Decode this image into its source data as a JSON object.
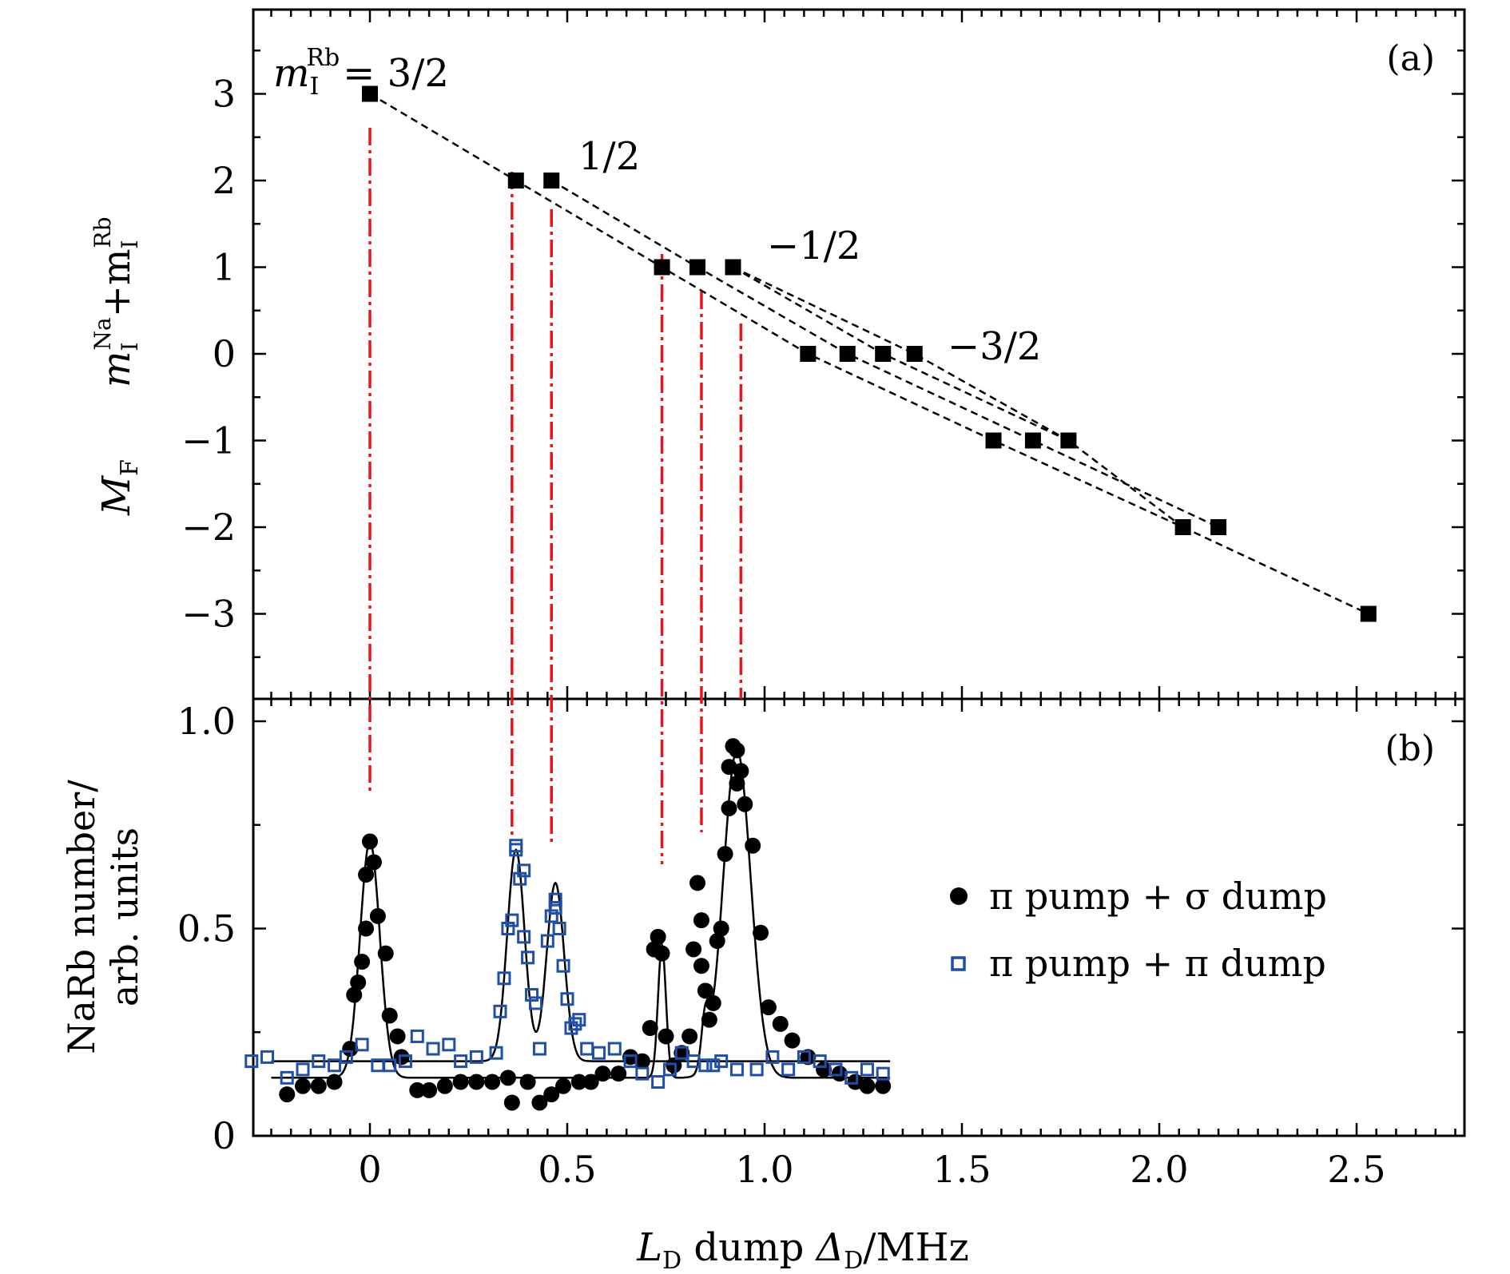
{
  "panel_a": {
    "tag": "(a)",
    "ylabel_parts": [
      "M",
      "F",
      "m",
      "I",
      "Na",
      "+m",
      "I",
      "Rb"
    ],
    "ytick_labels": [
      "3",
      "2",
      "1",
      "0",
      "−1",
      "−2",
      "−3"
    ],
    "group_labels": [
      "m",
      "I",
      "Rb",
      "= 3/2",
      "1/2",
      "−1/2",
      "−3/2"
    ]
  },
  "panel_b": {
    "tag": "(b)",
    "ylabel_line1": "NaRb number/",
    "ylabel_line2": "arb. units",
    "ytick_labels": [
      "0",
      "0.5",
      "1.0"
    ]
  },
  "xlabel_parts": [
    "L",
    "D",
    " dump ",
    "Δ",
    "D",
    "/MHz"
  ],
  "xtick_labels": [
    "0",
    "0.5",
    "1.0",
    "1.5",
    "2.0",
    "2.5"
  ],
  "legend": [
    "π pump + σ dump",
    "π pump + π dump"
  ],
  "colors": {
    "black": "#000000",
    "red": "#e8141c",
    "blue": "#1f4fa8"
  },
  "chart_data": [
    {
      "type": "scatter",
      "title": "(a)",
      "xlabel": "L_D dump Δ_D/MHz",
      "ylabel": "M_F   m_I^Na + m_I^Rb",
      "xlim": [
        -0.3,
        2.8
      ],
      "ylim": [
        -4,
        4
      ],
      "yticks": [
        3,
        2,
        1,
        0,
        -1,
        -2,
        -3
      ],
      "series": [
        {
          "name": "M_F levels",
          "points": [
            [
              0.0,
              3
            ],
            [
              0.37,
              2
            ],
            [
              0.46,
              2
            ],
            [
              0.74,
              1
            ],
            [
              0.83,
              1
            ],
            [
              0.92,
              1
            ],
            [
              1.11,
              0
            ],
            [
              1.21,
              0
            ],
            [
              1.3,
              0
            ],
            [
              1.38,
              0
            ],
            [
              1.58,
              -1
            ],
            [
              1.68,
              -1
            ],
            [
              1.77,
              -1
            ],
            [
              2.06,
              -2
            ],
            [
              2.15,
              -2
            ],
            [
              2.53,
              -3
            ]
          ]
        }
      ],
      "dashed_lines": [
        [
          [
            0.0,
            3
          ],
          [
            0.37,
            2
          ],
          [
            0.74,
            1
          ],
          [
            1.11,
            0
          ],
          [
            1.58,
            -1
          ],
          [
            2.06,
            -2
          ],
          [
            2.53,
            -3
          ]
        ],
        [
          [
            0.46,
            2
          ],
          [
            0.83,
            1
          ],
          [
            1.21,
            0
          ],
          [
            1.68,
            -1
          ],
          [
            2.15,
            -2
          ]
        ],
        [
          [
            0.92,
            1
          ],
          [
            1.3,
            0
          ],
          [
            1.77,
            -1
          ],
          [
            2.06,
            -2
          ]
        ],
        [
          [
            0.92,
            1
          ],
          [
            1.38,
            0
          ],
          [
            1.77,
            -1
          ]
        ]
      ],
      "annotations": [
        {
          "text": "m_I^Rb = 3/2"
        },
        {
          "text": "1/2"
        },
        {
          "text": "−1/2"
        },
        {
          "text": "−3/2"
        }
      ],
      "red_markers_x": [
        0.0,
        0.36,
        0.46,
        0.74,
        0.84,
        0.94
      ]
    },
    {
      "type": "scatter",
      "title": "(b)",
      "xlabel": "L_D dump Δ_D/MHz",
      "ylabel": "NaRb number/ arb. units",
      "xlim": [
        -0.3,
        2.8
      ],
      "ylim": [
        0,
        1.1
      ],
      "xticks": [
        0,
        0.5,
        1.0,
        1.5,
        2.0,
        2.5
      ],
      "yticks": [
        0,
        0.5,
        1.0
      ],
      "legend_position": "right",
      "series": [
        {
          "name": "π pump + σ dump",
          "marker": "filled-circle",
          "color": "#000000",
          "points": [
            [
              -0.21,
              0.1
            ],
            [
              -0.17,
              0.12
            ],
            [
              -0.13,
              0.12
            ],
            [
              -0.09,
              0.13
            ],
            [
              -0.05,
              0.21
            ],
            [
              -0.04,
              0.34
            ],
            [
              -0.03,
              0.37
            ],
            [
              -0.02,
              0.42
            ],
            [
              -0.01,
              0.5
            ],
            [
              -0.01,
              0.63
            ],
            [
              0.0,
              0.71
            ],
            [
              0.01,
              0.66
            ],
            [
              0.02,
              0.53
            ],
            [
              0.04,
              0.44
            ],
            [
              0.05,
              0.29
            ],
            [
              0.07,
              0.24
            ],
            [
              0.08,
              0.19
            ],
            [
              0.12,
              0.11
            ],
            [
              0.15,
              0.11
            ],
            [
              0.19,
              0.12
            ],
            [
              0.23,
              0.13
            ],
            [
              0.27,
              0.13
            ],
            [
              0.31,
              0.13
            ],
            [
              0.35,
              0.14
            ],
            [
              0.36,
              0.08
            ],
            [
              0.4,
              0.13
            ],
            [
              0.43,
              0.08
            ],
            [
              0.46,
              0.1
            ],
            [
              0.49,
              0.12
            ],
            [
              0.53,
              0.13
            ],
            [
              0.56,
              0.13
            ],
            [
              0.59,
              0.15
            ],
            [
              0.63,
              0.15
            ],
            [
              0.66,
              0.19
            ],
            [
              0.69,
              0.18
            ],
            [
              0.71,
              0.26
            ],
            [
              0.72,
              0.45
            ],
            [
              0.73,
              0.48
            ],
            [
              0.74,
              0.44
            ],
            [
              0.75,
              0.24
            ],
            [
              0.77,
              0.17
            ],
            [
              0.79,
              0.2
            ],
            [
              0.81,
              0.24
            ],
            [
              0.82,
              0.45
            ],
            [
              0.83,
              0.61
            ],
            [
              0.84,
              0.52
            ],
            [
              0.84,
              0.41
            ],
            [
              0.85,
              0.35
            ],
            [
              0.86,
              0.28
            ],
            [
              0.87,
              0.32
            ],
            [
              0.88,
              0.47
            ],
            [
              0.89,
              0.5
            ],
            [
              0.9,
              0.68
            ],
            [
              0.91,
              0.79
            ],
            [
              0.91,
              0.89
            ],
            [
              0.92,
              0.94
            ],
            [
              0.93,
              0.85
            ],
            [
              0.93,
              0.93
            ],
            [
              0.94,
              0.88
            ],
            [
              0.95,
              0.8
            ],
            [
              0.97,
              0.7
            ],
            [
              0.99,
              0.49
            ],
            [
              1.01,
              0.31
            ],
            [
              1.04,
              0.27
            ],
            [
              1.07,
              0.23
            ],
            [
              1.11,
              0.19
            ],
            [
              1.15,
              0.16
            ],
            [
              1.19,
              0.15
            ],
            [
              1.23,
              0.13
            ],
            [
              1.26,
              0.12
            ],
            [
              1.3,
              0.12
            ]
          ]
        },
        {
          "name": "π pump + π dump",
          "marker": "open-square",
          "color": "#1f4fa8",
          "points": [
            [
              -0.3,
              0.18
            ],
            [
              -0.26,
              0.19
            ],
            [
              -0.21,
              0.14
            ],
            [
              -0.17,
              0.16
            ],
            [
              -0.13,
              0.18
            ],
            [
              -0.09,
              0.17
            ],
            [
              -0.06,
              0.19
            ],
            [
              -0.02,
              0.22
            ],
            [
              0.02,
              0.17
            ],
            [
              0.05,
              0.17
            ],
            [
              0.09,
              0.18
            ],
            [
              0.12,
              0.24
            ],
            [
              0.16,
              0.21
            ],
            [
              0.2,
              0.22
            ],
            [
              0.23,
              0.18
            ],
            [
              0.27,
              0.19
            ],
            [
              0.32,
              0.2
            ],
            [
              0.33,
              0.3
            ],
            [
              0.34,
              0.38
            ],
            [
              0.35,
              0.5
            ],
            [
              0.36,
              0.52
            ],
            [
              0.37,
              0.69
            ],
            [
              0.37,
              0.7
            ],
            [
              0.38,
              0.62
            ],
            [
              0.39,
              0.64
            ],
            [
              0.39,
              0.48
            ],
            [
              0.4,
              0.43
            ],
            [
              0.41,
              0.34
            ],
            [
              0.42,
              0.32
            ],
            [
              0.43,
              0.21
            ],
            [
              0.45,
              0.47
            ],
            [
              0.46,
              0.53
            ],
            [
              0.47,
              0.57
            ],
            [
              0.47,
              0.55
            ],
            [
              0.48,
              0.5
            ],
            [
              0.49,
              0.41
            ],
            [
              0.5,
              0.33
            ],
            [
              0.51,
              0.26
            ],
            [
              0.52,
              0.27
            ],
            [
              0.53,
              0.28
            ],
            [
              0.55,
              0.21
            ],
            [
              0.58,
              0.2
            ],
            [
              0.62,
              0.21
            ],
            [
              0.66,
              0.18
            ],
            [
              0.69,
              0.15
            ],
            [
              0.73,
              0.13
            ],
            [
              0.76,
              0.16
            ],
            [
              0.79,
              0.2
            ],
            [
              0.82,
              0.18
            ],
            [
              0.85,
              0.17
            ],
            [
              0.87,
              0.17
            ],
            [
              0.89,
              0.18
            ],
            [
              0.93,
              0.16
            ],
            [
              0.98,
              0.16
            ],
            [
              1.02,
              0.19
            ],
            [
              1.06,
              0.16
            ],
            [
              1.1,
              0.19
            ],
            [
              1.14,
              0.18
            ],
            [
              1.18,
              0.16
            ],
            [
              1.22,
              0.14
            ],
            [
              1.26,
              0.16
            ],
            [
              1.3,
              0.15
            ]
          ]
        },
        {
          "name": "fit (π pump + σ dump)",
          "type": "line",
          "color": "#000000",
          "baseline": 0.14,
          "peaks": [
            [
              0.0,
              0.57,
              0.025
            ],
            [
              0.74,
              0.32,
              0.01
            ],
            [
              0.85,
              0.12,
              0.01
            ],
            [
              0.93,
              0.79,
              0.035
            ]
          ]
        },
        {
          "name": "fit (π pump + π dump)",
          "type": "line",
          "color": "#000000",
          "baseline": 0.18,
          "peaks": [
            [
              0.37,
              0.51,
              0.022
            ],
            [
              0.47,
              0.43,
              0.022
            ]
          ]
        }
      ]
    }
  ]
}
